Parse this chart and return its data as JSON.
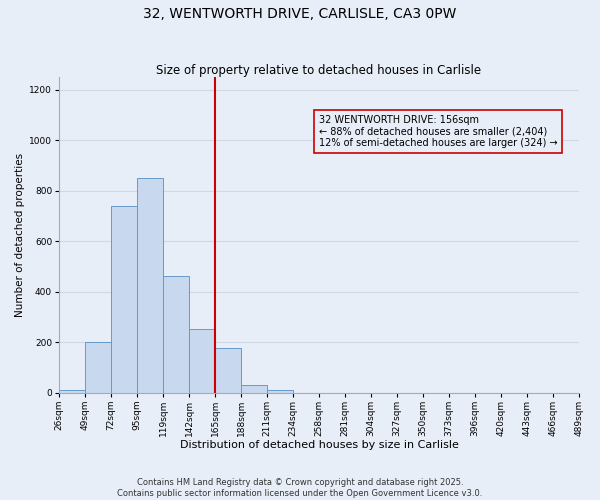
{
  "title": "32, WENTWORTH DRIVE, CARLISLE, CA3 0PW",
  "subtitle": "Size of property relative to detached houses in Carlisle",
  "xlabel": "Distribution of detached houses by size in Carlisle",
  "ylabel": "Number of detached properties",
  "bar_values": [
    10,
    200,
    740,
    850,
    460,
    250,
    175,
    30,
    10,
    0,
    0,
    0,
    0,
    0,
    0,
    0,
    0,
    0,
    0,
    0
  ],
  "bar_color": "#c8d8ee",
  "bar_edge_color": "#6699cc",
  "x_labels": [
    "26sqm",
    "49sqm",
    "72sqm",
    "95sqm",
    "119sqm",
    "142sqm",
    "165sqm",
    "188sqm",
    "211sqm",
    "234sqm",
    "258sqm",
    "281sqm",
    "304sqm",
    "327sqm",
    "350sqm",
    "373sqm",
    "396sqm",
    "420sqm",
    "443sqm",
    "466sqm",
    "489sqm"
  ],
  "ylim": [
    0,
    1250
  ],
  "yticks": [
    0,
    200,
    400,
    600,
    800,
    1000,
    1200
  ],
  "vline_x": 6,
  "vline_color": "#cc0000",
  "annotation_title": "32 WENTWORTH DRIVE: 156sqm",
  "annotation_line1": "← 88% of detached houses are smaller (2,404)",
  "annotation_line2": "12% of semi-detached houses are larger (324) →",
  "annotation_box_edge": "#cc0000",
  "footer_line1": "Contains HM Land Registry data © Crown copyright and database right 2025.",
  "footer_line2": "Contains public sector information licensed under the Open Government Licence v3.0.",
  "background_color": "#e8eef8",
  "plot_bg_color": "#e8eef8",
  "grid_color": "#d0d8e8",
  "title_fontsize": 10,
  "subtitle_fontsize": 8.5,
  "xlabel_fontsize": 8,
  "ylabel_fontsize": 7.5,
  "tick_fontsize": 6.5,
  "annotation_fontsize": 7,
  "footer_fontsize": 6
}
